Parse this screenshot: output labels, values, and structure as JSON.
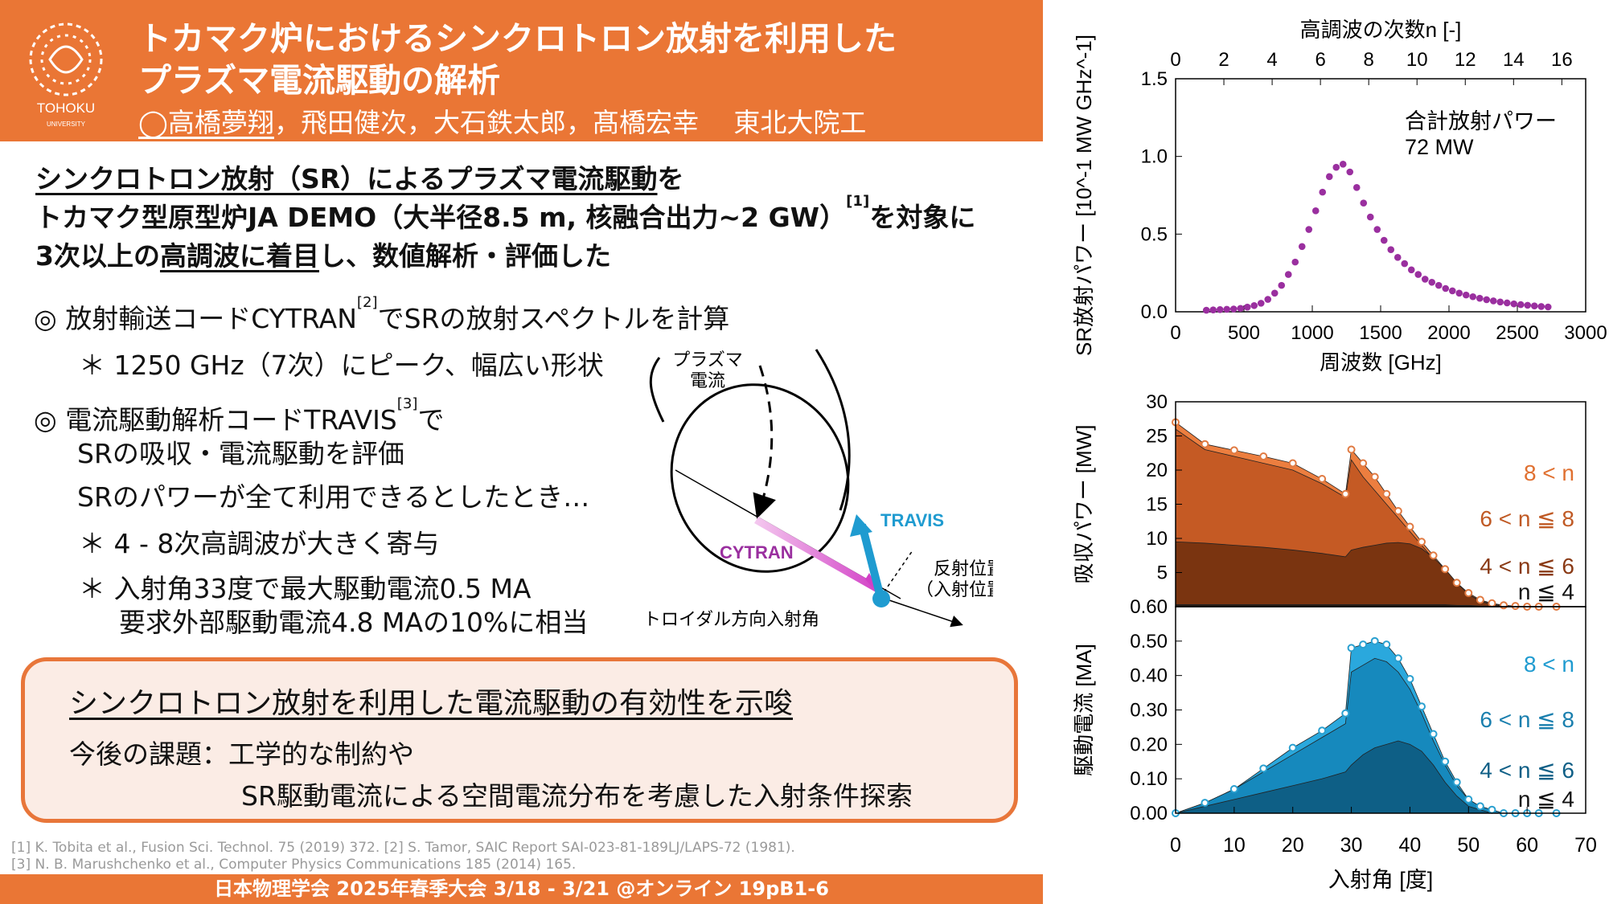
{
  "header": {
    "title_line1": "トカマク炉におけるシンクロトロン放射を利用した",
    "title_line2": "プラズマ電流駆動の解析",
    "presenter": "◯高橋夢翔",
    "coauthors": "，飛田健次，大石鉄太郎，髙橋宏幸　 東北大院工",
    "university": "TOHOKU",
    "university_sub": "UNIVERSITY"
  },
  "intro": {
    "line1_u": "シンクロトロン放射（SR）によるプラズマ電流駆動",
    "line1_rest": "を",
    "line2": "トカマク型原型炉JA DEMO（大半径8.5 m, 核融合出力~2 GW）",
    "line2_ref": "[1]",
    "line2_rest": "を対象に",
    "line3_pre": "3次以上の",
    "line3_u": "高調波に着目",
    "line3_rest": "し、数値解析・評価した"
  },
  "bullets": {
    "b1": "◎  放射輸送コードCYTRAN",
    "b1_ref": "[2]",
    "b1_rest": "でSRの放射スペクトルを計算",
    "b1_sub": "＊  1250 GHz（7次）にピーク、幅広い形状",
    "b2": "◎  電流駆動解析コードTRAVIS",
    "b2_ref": "[3]",
    "b2_rest": "で",
    "b2_l2": "SRの吸収・電流駆動を評価",
    "b2_l3": "SRのパワーが全て利用できるとしたとき…",
    "b2_s1": "＊  4 - 8次高調波が大きく寄与",
    "b2_s2": "＊  入射角33度で最大駆動電流0.5 MA",
    "b2_s3": "要求外部駆動電流4.8 MAの10%に相当"
  },
  "diagram": {
    "plasma_current": "プラズマ\n電流",
    "cytran": "CYTRAN",
    "travis": "TRAVIS",
    "reflect": "反射位置\n（入射位置）",
    "toroidal": "トロイダル方向入射角"
  },
  "conclusion": {
    "headline": "シンクロトロン放射を利用した電流駆動の有効性を示唆",
    "task1": "今後の課題：工学的な制約や",
    "task2": "SR駆動電流による空間電流分布を考慮した入射条件探索"
  },
  "refs": {
    "r1": "[1] K. Tobita et al., Fusion Sci. Technol. 75 (2019) 372. [2] S. Tamor, SAIC Report SAI-023-81-189LJ/LAPS-72 (1981).",
    "r2": "[3] N. B. Marushchenko et al., Computer Physics Communications 185 (2014) 165."
  },
  "footer": "日本物理学会 2025年春季大会 3/18 - 3/21 @オンライン  19pB1-6",
  "colors": {
    "orange": "#ea7635",
    "purple": "#9a2f9f",
    "blue": "#1f9bd0"
  },
  "chart_data": [
    {
      "type": "scatter",
      "title": "",
      "xlabel": "周波数 [GHz]",
      "ylabel": "SR放射パワー [10^-1 MW GHz^-1]",
      "x2label": "高調波の次数n [-]",
      "xlim": [
        0,
        3000
      ],
      "ylim": [
        0,
        1.5
      ],
      "xticks": [
        0,
        500,
        1000,
        1500,
        2000,
        2500,
        3000
      ],
      "yticks": [
        "0.0",
        "0.5",
        "1.0",
        "1.5"
      ],
      "x2ticks": [
        0,
        2,
        4,
        6,
        8,
        10,
        12,
        14,
        16
      ],
      "annotation": "合計放射パワー\n72 MW",
      "x": [
        225,
        275,
        325,
        375,
        425,
        475,
        525,
        575,
        625,
        675,
        725,
        775,
        825,
        875,
        925,
        975,
        1025,
        1075,
        1125,
        1175,
        1225,
        1275,
        1325,
        1375,
        1425,
        1475,
        1525,
        1575,
        1625,
        1675,
        1725,
        1775,
        1825,
        1875,
        1925,
        1975,
        2025,
        2075,
        2125,
        2175,
        2225,
        2275,
        2325,
        2375,
        2425,
        2475,
        2525,
        2575,
        2625,
        2675,
        2725
      ],
      "y": [
        0.01,
        0.012,
        0.014,
        0.016,
        0.018,
        0.022,
        0.03,
        0.04,
        0.055,
        0.08,
        0.12,
        0.17,
        0.24,
        0.32,
        0.42,
        0.53,
        0.65,
        0.77,
        0.87,
        0.93,
        0.95,
        0.9,
        0.8,
        0.7,
        0.61,
        0.53,
        0.46,
        0.4,
        0.35,
        0.31,
        0.27,
        0.24,
        0.21,
        0.19,
        0.17,
        0.15,
        0.135,
        0.12,
        0.108,
        0.097,
        0.087,
        0.078,
        0.07,
        0.063,
        0.057,
        0.051,
        0.046,
        0.042,
        0.038,
        0.034,
        0.031
      ]
    },
    {
      "type": "area",
      "xlabel": "入射角  [度]",
      "ylabel": "吸収パワー  [MW]",
      "xlim": [
        0,
        70
      ],
      "ylim": [
        0,
        30
      ],
      "xticks": [
        0,
        10,
        20,
        30,
        40,
        50,
        60,
        70
      ],
      "yticks": [
        "0",
        "5",
        "10",
        "15",
        "20",
        "25",
        "30"
      ],
      "x": [
        0,
        5,
        10,
        15,
        20,
        25,
        29,
        30,
        32,
        34,
        36,
        38,
        40,
        42,
        44,
        46,
        48,
        50,
        52,
        54,
        56,
        58,
        60,
        62,
        65
      ],
      "series": [
        {
          "name": "n ≦ 4",
          "values": [
            0.3,
            0.3,
            0.3,
            0.3,
            0.3,
            0.3,
            0.3,
            0.3,
            0.3,
            0.3,
            0.3,
            0.3,
            0.3,
            0.3,
            0.3,
            0.3,
            0.2,
            0.2,
            0.1,
            0.1,
            0.1,
            0,
            0,
            0,
            0
          ]
        },
        {
          "name": "4 < n ≦ 6",
          "values": [
            9.5,
            9.3,
            9.0,
            8.7,
            8.3,
            7.8,
            7.3,
            8.3,
            8.7,
            9.0,
            9.3,
            9.4,
            9.2,
            8.5,
            7.2,
            5.5,
            3.5,
            1.8,
            0.8,
            0.3,
            0.1,
            0,
            0,
            0,
            0
          ]
        },
        {
          "name": "6 < n ≦ 8",
          "values": [
            26.0,
            23.0,
            22.0,
            21.0,
            20.0,
            18.0,
            16.0,
            21.5,
            19.0,
            17.0,
            15.0,
            13.0,
            11.0,
            9.0,
            7.0,
            5.0,
            3.2,
            1.8,
            0.9,
            0.4,
            0.2,
            0.05,
            0,
            0,
            0
          ]
        },
        {
          "name": "8 < n",
          "values": [
            27.0,
            23.8,
            22.9,
            22.0,
            21.0,
            18.7,
            16.5,
            23.0,
            21.0,
            19.0,
            16.5,
            14.0,
            11.7,
            9.5,
            7.5,
            5.5,
            3.5,
            2.0,
            1.0,
            0.5,
            0.2,
            0.1,
            0,
            0,
            0
          ]
        }
      ]
    },
    {
      "type": "area",
      "xlabel": "入射角  [度]",
      "ylabel": "駆動電流  [MA]",
      "xlim": [
        0,
        70
      ],
      "ylim": [
        0,
        0.6
      ],
      "xticks": [
        0,
        10,
        20,
        30,
        40,
        50,
        60,
        70
      ],
      "yticks": [
        "0.00",
        "0.10",
        "0.20",
        "0.30",
        "0.40",
        "0.50",
        "0.60"
      ],
      "x": [
        0,
        5,
        10,
        15,
        20,
        25,
        29,
        30,
        32,
        34,
        36,
        38,
        40,
        42,
        44,
        46,
        48,
        50,
        52,
        54,
        56,
        58,
        60,
        62,
        65
      ],
      "series": [
        {
          "name": "n ≦ 4",
          "values": [
            0,
            0,
            0,
            0,
            0,
            0,
            0,
            0,
            0,
            0,
            0,
            0,
            0,
            0,
            0,
            0,
            0,
            0,
            0,
            0,
            0,
            0,
            0,
            0,
            0
          ]
        },
        {
          "name": "4 < n ≦ 6",
          "values": [
            0,
            0.02,
            0.04,
            0.06,
            0.08,
            0.1,
            0.12,
            0.14,
            0.17,
            0.19,
            0.2,
            0.21,
            0.2,
            0.18,
            0.14,
            0.09,
            0.05,
            0.02,
            0.01,
            0,
            0,
            0,
            0,
            0,
            0
          ]
        },
        {
          "name": "6 < n ≦ 8",
          "values": [
            0,
            0.03,
            0.07,
            0.12,
            0.17,
            0.22,
            0.26,
            0.41,
            0.43,
            0.45,
            0.44,
            0.41,
            0.36,
            0.29,
            0.21,
            0.14,
            0.08,
            0.04,
            0.02,
            0.01,
            0,
            0,
            0,
            0,
            0
          ]
        },
        {
          "name": "8 < n",
          "values": [
            0,
            0.03,
            0.07,
            0.13,
            0.19,
            0.24,
            0.29,
            0.48,
            0.49,
            0.5,
            0.49,
            0.45,
            0.39,
            0.31,
            0.23,
            0.15,
            0.09,
            0.04,
            0.02,
            0.01,
            0,
            0,
            0,
            0,
            0
          ]
        }
      ]
    }
  ]
}
